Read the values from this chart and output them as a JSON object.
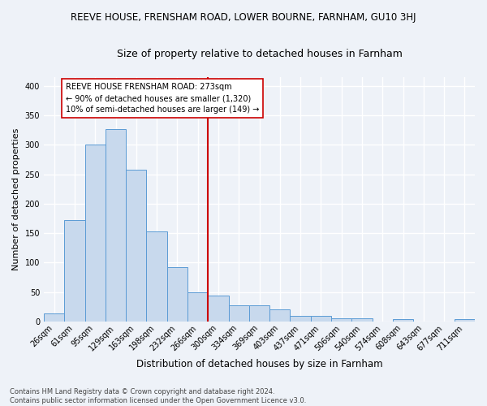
{
  "title": "REEVE HOUSE, FRENSHAM ROAD, LOWER BOURNE, FARNHAM, GU10 3HJ",
  "subtitle": "Size of property relative to detached houses in Farnham",
  "xlabel": "Distribution of detached houses by size in Farnham",
  "ylabel": "Number of detached properties",
  "categories": [
    "26sqm",
    "61sqm",
    "95sqm",
    "129sqm",
    "163sqm",
    "198sqm",
    "232sqm",
    "266sqm",
    "300sqm",
    "334sqm",
    "369sqm",
    "403sqm",
    "437sqm",
    "471sqm",
    "506sqm",
    "540sqm",
    "574sqm",
    "608sqm",
    "643sqm",
    "677sqm",
    "711sqm"
  ],
  "values": [
    14,
    172,
    301,
    327,
    258,
    153,
    93,
    50,
    44,
    27,
    27,
    21,
    10,
    10,
    5,
    5,
    0,
    4,
    0,
    0,
    4
  ],
  "bar_color": "#c8d9ed",
  "bar_edge_color": "#5b9bd5",
  "vline_color": "#cc0000",
  "annotation_text": "REEVE HOUSE FRENSHAM ROAD: 273sqm\n← 90% of detached houses are smaller (1,320)\n10% of semi-detached houses are larger (149) →",
  "annotation_box_color": "white",
  "annotation_box_edge": "#cc0000",
  "footer": "Contains HM Land Registry data © Crown copyright and database right 2024.\nContains public sector information licensed under the Open Government Licence v3.0.",
  "bg_color": "#eef2f8",
  "grid_color": "white",
  "ylim": [
    0,
    415
  ],
  "title_fontsize": 8.5,
  "subtitle_fontsize": 9,
  "ylabel_fontsize": 8,
  "xlabel_fontsize": 8.5,
  "tick_fontsize": 7,
  "footer_fontsize": 6,
  "ann_fontsize": 7
}
